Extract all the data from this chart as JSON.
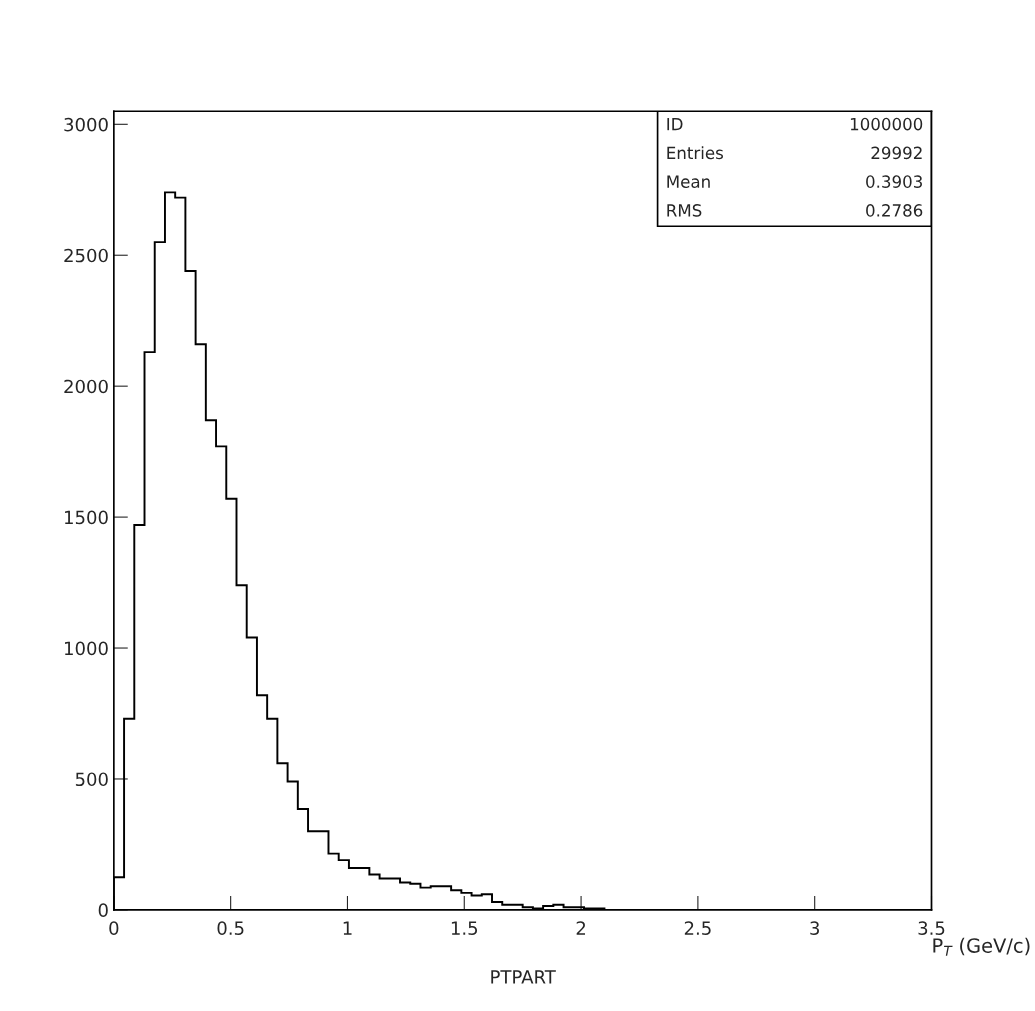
{
  "chart_data": {
    "type": "histogram",
    "title": "PTPART",
    "xlabel": "P$_{T}$ (GeV/c)",
    "annotations": [
      "ID",
      "1000000",
      "Entries",
      "29992",
      "Mean",
      "0.3903",
      "RMS",
      "0.2786"
    ],
    "bins": [
      0,
      0.04375,
      0.0875,
      0.13125,
      0.175,
      0.21875,
      0.2625,
      0.30625,
      0.35,
      0.39375,
      0.4375,
      0.48125,
      0.525,
      0.56875,
      0.6125,
      0.65625,
      0.7,
      0.74375,
      0.7875,
      0.83125,
      0.875,
      0.91875,
      0.9625,
      1.00625,
      1.05,
      1.09375,
      1.1375,
      1.18125,
      1.225,
      1.26875,
      1.3125,
      1.35625,
      1.4,
      1.44375,
      1.4875,
      1.53125,
      1.575,
      1.61875,
      1.6625,
      1.70625,
      1.75,
      1.79375,
      1.8375,
      1.88125,
      1.925,
      1.96875,
      2.0125,
      2.05625,
      2.1,
      2.14375,
      2.1875,
      2.23125,
      2.275,
      2.31875,
      2.3625,
      2.40625,
      2.45,
      2.49375,
      2.5375,
      2.58125,
      2.625,
      2.66875,
      2.7125,
      2.75625,
      2.8,
      2.84375,
      2.8875,
      2.93125,
      2.975,
      3.01875,
      3.0625,
      3.10625,
      3.15,
      3.19375,
      3.2375,
      3.28125,
      3.325,
      3.36875,
      3.4125,
      3.45625,
      3.5
    ],
    "values": [
      125,
      730,
      1470,
      2130,
      2550,
      2740,
      2720,
      2440,
      2160,
      1870,
      1770,
      1570,
      1240,
      1040,
      820,
      730,
      560,
      490,
      385,
      300,
      300,
      215,
      190,
      160,
      160,
      135,
      120,
      120,
      105,
      100,
      85,
      90,
      90,
      75,
      65,
      55,
      60,
      30,
      20,
      20,
      10,
      5,
      15,
      20,
      10,
      10,
      5,
      5,
      0,
      0,
      0,
      0,
      0,
      0,
      0,
      0,
      0,
      0,
      0,
      0,
      0,
      0,
      0,
      0,
      0,
      0,
      0,
      0,
      0,
      0,
      0,
      0,
      0,
      0,
      0,
      0,
      0,
      0,
      0,
      0
    ],
    "color": "#000000",
    "xlim": [
      0,
      3.5
    ],
    "xticks": [
      0,
      0.5,
      1,
      1.5,
      2,
      2.5,
      3,
      3.5
    ],
    "ylim": [
      0,
      3050
    ],
    "yticks": [
      0,
      500,
      1000,
      1500,
      2000,
      2500,
      3000
    ]
  }
}
